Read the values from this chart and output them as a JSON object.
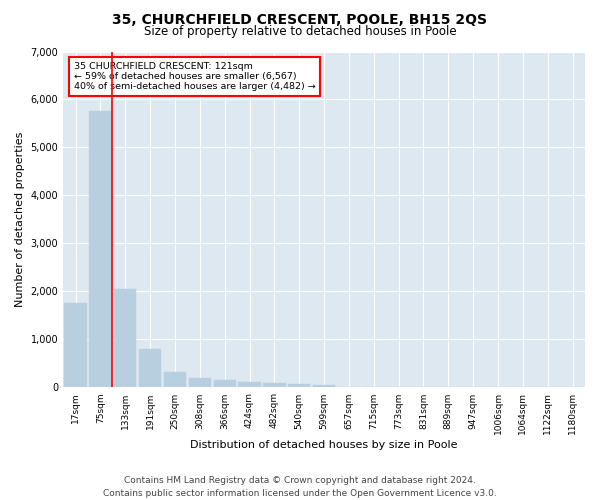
{
  "title": "35, CHURCHFIELD CRESCENT, POOLE, BH15 2QS",
  "subtitle": "Size of property relative to detached houses in Poole",
  "xlabel": "Distribution of detached houses by size in Poole",
  "ylabel": "Number of detached properties",
  "bar_color": "#b8cfe0",
  "bar_edge_color": "#b8cfe0",
  "vline_color": "red",
  "annotation_text": "35 CHURCHFIELD CRESCENT: 121sqm\n← 59% of detached houses are smaller (6,567)\n40% of semi-detached houses are larger (4,482) →",
  "annotation_box_color": "white",
  "annotation_box_edge_color": "red",
  "footer_line1": "Contains HM Land Registry data © Crown copyright and database right 2024.",
  "footer_line2": "Contains public sector information licensed under the Open Government Licence v3.0.",
  "categories": [
    "17sqm",
    "75sqm",
    "133sqm",
    "191sqm",
    "250sqm",
    "308sqm",
    "366sqm",
    "424sqm",
    "482sqm",
    "540sqm",
    "599sqm",
    "657sqm",
    "715sqm",
    "773sqm",
    "831sqm",
    "889sqm",
    "947sqm",
    "1006sqm",
    "1064sqm",
    "1122sqm",
    "1180sqm"
  ],
  "values": [
    1750,
    5750,
    2050,
    800,
    330,
    195,
    145,
    105,
    95,
    65,
    55,
    0,
    0,
    0,
    0,
    0,
    0,
    0,
    0,
    0,
    0
  ],
  "ylim": [
    0,
    7000
  ],
  "yticks": [
    0,
    1000,
    2000,
    3000,
    4000,
    5000,
    6000,
    7000
  ],
  "bg_color": "#dde8f0",
  "grid_color": "white",
  "title_fontsize": 10,
  "subtitle_fontsize": 8.5,
  "tick_fontsize": 6.5,
  "ylabel_fontsize": 8,
  "xlabel_fontsize": 8,
  "footer_fontsize": 6.5
}
